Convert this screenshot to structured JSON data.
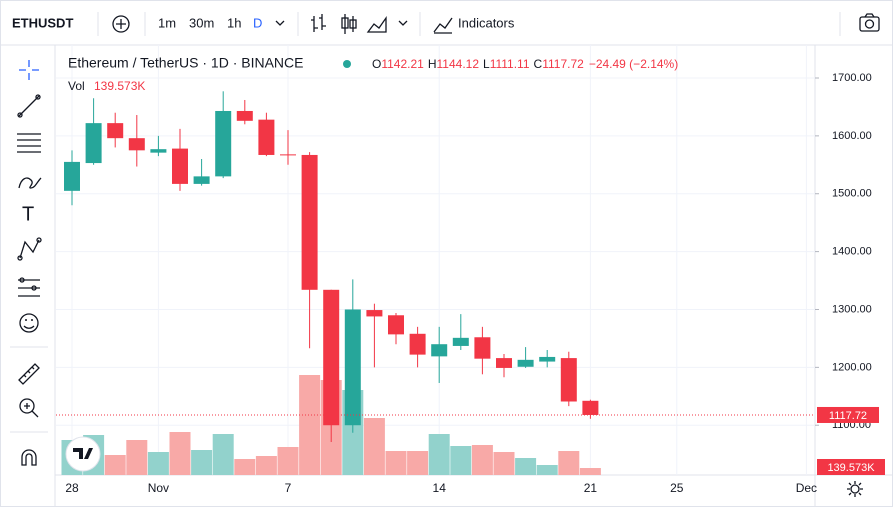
{
  "toolbar": {
    "symbol": "ETHUSDT",
    "intervals": [
      "1m",
      "30m",
      "1h",
      "D"
    ],
    "indicators": "Indicators"
  },
  "chart_data": {
    "type": "candlestick",
    "title": "Ethereum / TetherUS · 1D · BINANCE",
    "categories": [
      "28",
      null,
      null,
      null,
      "Nov",
      null,
      null,
      null,
      null,
      null,
      "7",
      null,
      null,
      null,
      null,
      null,
      null,
      "14",
      null,
      null,
      null,
      null,
      null,
      null,
      "21",
      null,
      null,
      null,
      "25",
      null,
      null,
      null,
      null,
      null,
      "Dec"
    ],
    "open": [
      1505,
      1553,
      1622,
      1596,
      1571,
      1578,
      1517,
      1530,
      1643,
      1628,
      1568,
      1567,
      1334,
      1100,
      1299,
      1290,
      1258,
      1219,
      1237,
      1252,
      1216,
      1201,
      1210,
      1216,
      1142.21,
      null,
      null,
      null,
      null,
      null,
      null,
      null,
      null,
      null,
      null
    ],
    "high": [
      1575,
      1665,
      1640,
      1636,
      1600,
      1612,
      1560,
      1677,
      1662,
      1640,
      1610,
      1572,
      1334,
      1352,
      1310,
      1294,
      1270,
      1270,
      1292,
      1270,
      1223,
      1235,
      1230,
      1227,
      1144.12,
      null,
      null,
      null,
      null,
      null,
      null,
      null,
      null,
      null,
      null
    ],
    "low": [
      1480,
      1550,
      1580,
      1547,
      1565,
      1505,
      1514,
      1527,
      1620,
      1565,
      1550,
      1233,
      1071,
      1087,
      1200,
      1240,
      1200,
      1173,
      1230,
      1188,
      1183,
      1199,
      1200,
      1133,
      1111.11,
      null,
      null,
      null,
      null,
      null,
      null,
      null,
      null,
      null,
      null
    ],
    "close": [
      1555,
      1622,
      1596,
      1575,
      1577,
      1517,
      1530,
      1643,
      1626,
      1567,
      1567,
      1334,
      1100,
      1300,
      1288,
      1257,
      1222,
      1240,
      1251,
      1215,
      1199,
      1213,
      1218,
      1141,
      1117.72,
      null,
      null,
      null,
      null,
      null,
      null,
      null,
      null,
      null,
      null
    ],
    "volume": [
      700000,
      800000,
      400000,
      700000,
      460000,
      860000,
      500000,
      820000,
      320000,
      380000,
      560000,
      2000000,
      1900000,
      1700000,
      1140000,
      480000,
      480000,
      820000,
      580000,
      600000,
      460000,
      340000,
      200000,
      480000,
      139573,
      null,
      null,
      null,
      null,
      null,
      null,
      null,
      null,
      null,
      null
    ],
    "volume_value_labels": {
      "24": "139.573K"
    },
    "volume_label": "Vol",
    "ohlc_prefixes": [
      "O",
      "H",
      "L",
      "C"
    ],
    "change_label": "−24.49 (−2.14%)",
    "ylim": [
      1014,
      1757
    ],
    "volume_lim": [
      0,
      8600000
    ],
    "yticks": [
      {
        "value": 1100,
        "label": "1100.00"
      },
      {
        "value": 1200,
        "label": "1200.00"
      },
      {
        "value": 1300,
        "label": "1300.00"
      },
      {
        "value": 1400,
        "label": "1400.00"
      },
      {
        "value": 1500,
        "label": "1500.00"
      },
      {
        "value": 1600,
        "label": "1600.00"
      },
      {
        "value": 1700,
        "label": "1700.00"
      }
    ],
    "up_color": "#26a69a",
    "down_color": "#f23645",
    "up_volume_color": "#92d2cc",
    "down_volume_color": "#f8a9a7",
    "grid": true
  }
}
